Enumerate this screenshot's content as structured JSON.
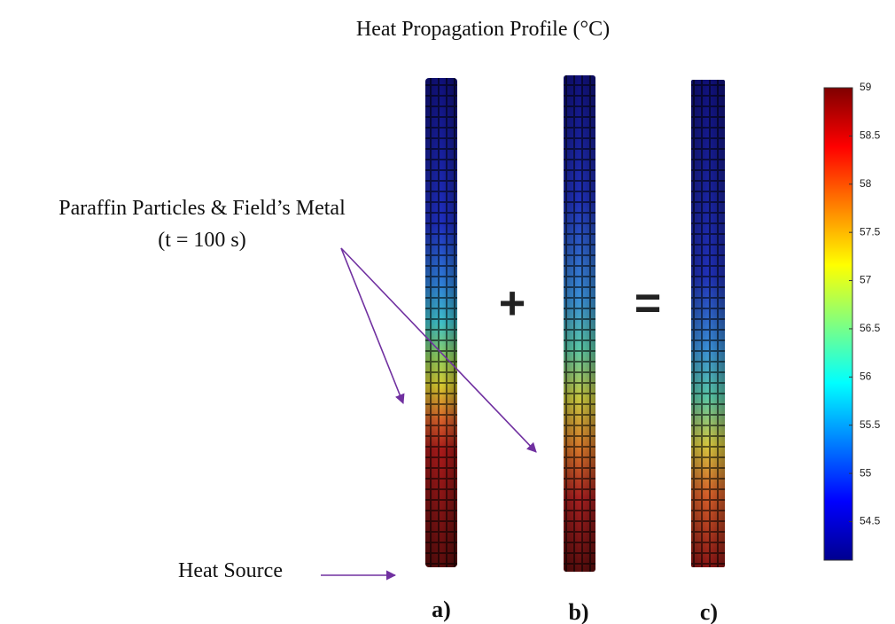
{
  "title": "Heat Propagation Profile (°C)",
  "annotations": {
    "particles": "Paraffin Particles & Field’s Metal",
    "time": "(t = 100 s)",
    "heat_source": "Heat Source"
  },
  "operators": [
    "+",
    "="
  ],
  "panels": [
    "a)",
    "b)",
    "c)"
  ],
  "colorbar": {
    "range": [
      54.1,
      59
    ],
    "ticks": [
      54.5,
      55,
      55.5,
      56,
      56.5,
      57,
      57.5,
      58,
      58.5,
      59
    ],
    "colors": [
      "#00008f",
      "#0000ff",
      "#0080ff",
      "#00ffff",
      "#80ff80",
      "#ffff00",
      "#ff8000",
      "#ff0000",
      "#800000"
    ]
  }
}
